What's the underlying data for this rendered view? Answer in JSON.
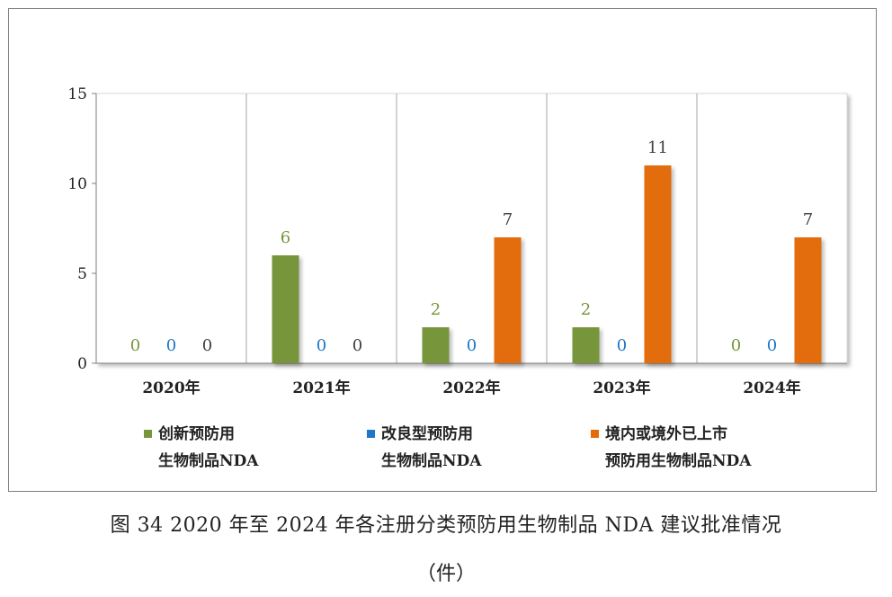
{
  "caption": {
    "line1": "图 34   2020 年至 2024 年各注册分类预防用生物制品 NDA 建议批准情况",
    "line2": "（件）"
  },
  "colors": {
    "series0": "#77963b",
    "series1": "#1f77c4",
    "series2": "#e36c0a",
    "axis": "#7f7f7f",
    "grid": "#a6a6a6"
  },
  "chart_data": {
    "type": "bar",
    "title": "",
    "xlabel": "",
    "ylabel": "",
    "ylim": [
      0,
      15
    ],
    "yticks": [
      0,
      5,
      10,
      15
    ],
    "categories": [
      "2020年",
      "2021年",
      "2022年",
      "2023年",
      "2024年"
    ],
    "series": [
      {
        "name": "创新预防用生物制品NDA",
        "legend_lines": [
          "创新预防用",
          "生物制品NDA"
        ],
        "values": [
          0,
          6,
          2,
          2,
          0
        ]
      },
      {
        "name": "改良型预防用生物制品NDA",
        "legend_lines": [
          "改良型预防用",
          "生物制品NDA"
        ],
        "values": [
          0,
          0,
          0,
          0,
          0
        ]
      },
      {
        "name": "境内或境外已上市预防用生物制品NDA",
        "legend_lines": [
          "境内或境外已上市",
          "预防用生物制品NDA"
        ],
        "values": [
          0,
          0,
          7,
          11,
          7
        ]
      }
    ],
    "legend_position": "bottom"
  }
}
